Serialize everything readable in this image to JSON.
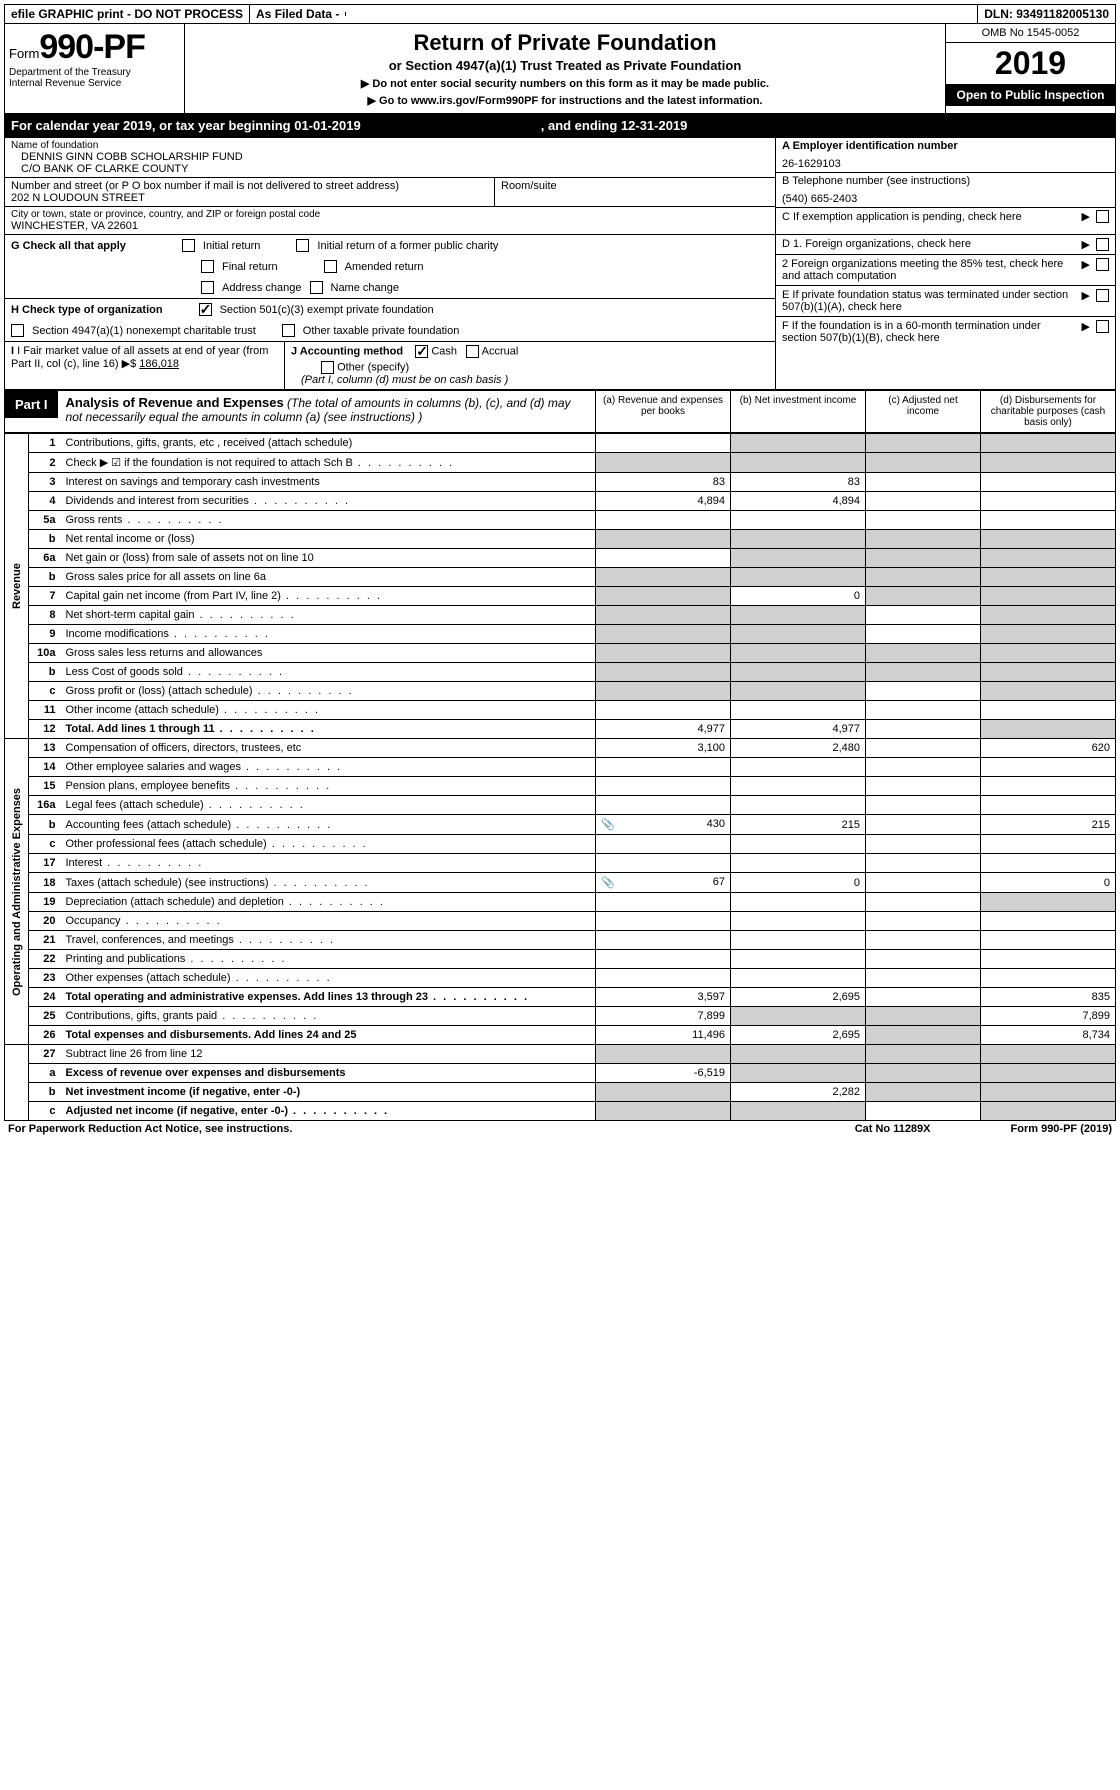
{
  "top": {
    "efile": "efile GRAPHIC print - DO NOT PROCESS",
    "asfiled": "As Filed Data -",
    "dln": "DLN: 93491182005130"
  },
  "header": {
    "form_prefix": "Form",
    "form_num": "990-PF",
    "dept": "Department of the Treasury",
    "irs": "Internal Revenue Service",
    "title": "Return of Private Foundation",
    "subtitle": "or Section 4947(a)(1) Trust Treated as Private Foundation",
    "instr1": "▶ Do not enter social security numbers on this form as it may be made public.",
    "instr2_pre": "▶ Go to ",
    "instr2_link": "www.irs.gov/Form990PF",
    "instr2_post": " for instructions and the latest information.",
    "omb": "OMB No 1545-0052",
    "year": "2019",
    "open": "Open to Public Inspection"
  },
  "calyear": {
    "text": "For calendar year 2019, or tax year beginning 01-01-2019",
    "ending": ", and ending 12-31-2019"
  },
  "entity": {
    "name_label": "Name of foundation",
    "name1": "DENNIS GINN COBB SCHOLARSHIP FUND",
    "name2": "C/O BANK OF CLARKE COUNTY",
    "addr_label": "Number and street (or P O  box number if mail is not delivered to street address)",
    "addr": "202 N LOUDOUN STREET",
    "room_label": "Room/suite",
    "city_label": "City or town, state or province, country, and ZIP or foreign postal code",
    "city": "WINCHESTER, VA  22601",
    "a_label": "A Employer identification number",
    "ein": "26-1629103",
    "b_label": "B Telephone number (see instructions)",
    "phone": "(540) 665-2403",
    "c_label": "C If exemption application is pending, check here"
  },
  "checks": {
    "g_label": "G Check all that apply",
    "g_opts": [
      "Initial return",
      "Initial return of a former public charity",
      "Final return",
      "Amended return",
      "Address change",
      "Name change"
    ],
    "h_label": "H Check type of organization",
    "h1": "Section 501(c)(3) exempt private foundation",
    "h2": "Section 4947(a)(1) nonexempt charitable trust",
    "h3": "Other taxable private foundation",
    "i_label": "I Fair market value of all assets at end of year (from Part II, col  (c), line 16) ▶$ ",
    "i_val": "186,018",
    "j_label": "J Accounting method",
    "j_cash": "Cash",
    "j_accrual": "Accrual",
    "j_other": "Other (specify)",
    "j_note": "(Part I, column (d) must be on cash basis )",
    "d1": "D 1. Foreign organizations, check here",
    "d2": "2 Foreign organizations meeting the 85% test, check here and attach computation",
    "e": "E  If private foundation status was terminated under section 507(b)(1)(A), check here",
    "f": "F  If the foundation is in a 60-month termination under section 507(b)(1)(B), check here"
  },
  "part1": {
    "label": "Part I",
    "title": "Analysis of Revenue and Expenses",
    "note": " (The total of amounts in columns (b), (c), and (d) may not necessarily equal the amounts in column (a) (see instructions) )",
    "col_a": "(a) Revenue and expenses per books",
    "col_b": "(b) Net investment income",
    "col_c": "(c) Adjusted net income",
    "col_d": "(d) Disbursements for charitable purposes (cash basis only)"
  },
  "rev_label": "Revenue",
  "exp_label": "Operating and Administrative Expenses",
  "rows": [
    {
      "n": "1",
      "d": "Contributions, gifts, grants, etc , received (attach schedule)",
      "a": "",
      "b": "",
      "c": "",
      "dd": "",
      "db": true,
      "dc": true,
      "ddc": true
    },
    {
      "n": "2",
      "d": "Check ▶ ☑ if the foundation is not required to attach Sch  B",
      "a": "",
      "b": "",
      "c": "",
      "dd": "",
      "da": true,
      "db": true,
      "dc": true,
      "ddc": true,
      "dots": true
    },
    {
      "n": "3",
      "d": "Interest on savings and temporary cash investments",
      "a": "83",
      "b": "83",
      "c": "",
      "dd": ""
    },
    {
      "n": "4",
      "d": "Dividends and interest from securities",
      "a": "4,894",
      "b": "4,894",
      "c": "",
      "dd": "",
      "dots": true
    },
    {
      "n": "5a",
      "d": "Gross rents",
      "a": "",
      "b": "",
      "c": "",
      "dd": "",
      "dots": true
    },
    {
      "n": "b",
      "d": "Net rental income or (loss)",
      "a": "",
      "b": "",
      "c": "",
      "dd": "",
      "da": true,
      "db": true,
      "dc": true,
      "ddc": true
    },
    {
      "n": "6a",
      "d": "Net gain or (loss) from sale of assets not on line 10",
      "a": "",
      "b": "",
      "c": "",
      "dd": "",
      "db": true,
      "dc": true,
      "ddc": true
    },
    {
      "n": "b",
      "d": "Gross sales price for all assets on line 6a",
      "a": "",
      "b": "",
      "c": "",
      "dd": "",
      "da": true,
      "db": true,
      "dc": true,
      "ddc": true
    },
    {
      "n": "7",
      "d": "Capital gain net income (from Part IV, line 2)",
      "a": "",
      "b": "0",
      "c": "",
      "dd": "",
      "da": true,
      "dc": true,
      "ddc": true,
      "dots": true
    },
    {
      "n": "8",
      "d": "Net short-term capital gain",
      "a": "",
      "b": "",
      "c": "",
      "dd": "",
      "da": true,
      "db": true,
      "ddc": true,
      "dots": true
    },
    {
      "n": "9",
      "d": "Income modifications",
      "a": "",
      "b": "",
      "c": "",
      "dd": "",
      "da": true,
      "db": true,
      "ddc": true,
      "dots": true
    },
    {
      "n": "10a",
      "d": "Gross sales less returns and allowances",
      "a": "",
      "b": "",
      "c": "",
      "dd": "",
      "da": true,
      "db": true,
      "dc": true,
      "ddc": true
    },
    {
      "n": "b",
      "d": "Less  Cost of goods sold",
      "a": "",
      "b": "",
      "c": "",
      "dd": "",
      "da": true,
      "db": true,
      "dc": true,
      "ddc": true,
      "dots": true
    },
    {
      "n": "c",
      "d": "Gross profit or (loss) (attach schedule)",
      "a": "",
      "b": "",
      "c": "",
      "dd": "",
      "da": true,
      "db": true,
      "ddc": true,
      "dots": true
    },
    {
      "n": "11",
      "d": "Other income (attach schedule)",
      "a": "",
      "b": "",
      "c": "",
      "dd": "",
      "dots": true
    },
    {
      "n": "12",
      "d": "Total. Add lines 1 through 11",
      "a": "4,977",
      "b": "4,977",
      "c": "",
      "dd": "",
      "bold": true,
      "ddc": true,
      "dots": true
    }
  ],
  "exp_rows": [
    {
      "n": "13",
      "d": "Compensation of officers, directors, trustees, etc",
      "a": "3,100",
      "b": "2,480",
      "c": "",
      "dd": "620"
    },
    {
      "n": "14",
      "d": "Other employee salaries and wages",
      "a": "",
      "b": "",
      "c": "",
      "dd": "",
      "dots": true
    },
    {
      "n": "15",
      "d": "Pension plans, employee benefits",
      "a": "",
      "b": "",
      "c": "",
      "dd": "",
      "dots": true
    },
    {
      "n": "16a",
      "d": "Legal fees (attach schedule)",
      "a": "",
      "b": "",
      "c": "",
      "dd": "",
      "dots": true
    },
    {
      "n": "b",
      "d": "Accounting fees (attach schedule)",
      "a": "430",
      "b": "215",
      "c": "",
      "dd": "215",
      "icon": true,
      "dots": true
    },
    {
      "n": "c",
      "d": "Other professional fees (attach schedule)",
      "a": "",
      "b": "",
      "c": "",
      "dd": "",
      "dots": true
    },
    {
      "n": "17",
      "d": "Interest",
      "a": "",
      "b": "",
      "c": "",
      "dd": "",
      "dots": true
    },
    {
      "n": "18",
      "d": "Taxes (attach schedule) (see instructions)",
      "a": "67",
      "b": "0",
      "c": "",
      "dd": "0",
      "icon": true,
      "dots": true
    },
    {
      "n": "19",
      "d": "Depreciation (attach schedule) and depletion",
      "a": "",
      "b": "",
      "c": "",
      "dd": "",
      "ddc": true,
      "dots": true
    },
    {
      "n": "20",
      "d": "Occupancy",
      "a": "",
      "b": "",
      "c": "",
      "dd": "",
      "dots": true
    },
    {
      "n": "21",
      "d": "Travel, conferences, and meetings",
      "a": "",
      "b": "",
      "c": "",
      "dd": "",
      "dots": true
    },
    {
      "n": "22",
      "d": "Printing and publications",
      "a": "",
      "b": "",
      "c": "",
      "dd": "",
      "dots": true
    },
    {
      "n": "23",
      "d": "Other expenses (attach schedule)",
      "a": "",
      "b": "",
      "c": "",
      "dd": "",
      "dots": true
    },
    {
      "n": "24",
      "d": "Total operating and administrative expenses. Add lines 13 through 23",
      "a": "3,597",
      "b": "2,695",
      "c": "",
      "dd": "835",
      "bold": true,
      "dots": true
    },
    {
      "n": "25",
      "d": "Contributions, gifts, grants paid",
      "a": "7,899",
      "b": "",
      "c": "",
      "dd": "7,899",
      "db": true,
      "dc": true,
      "dots": true
    },
    {
      "n": "26",
      "d": "Total expenses and disbursements. Add lines 24 and 25",
      "a": "11,496",
      "b": "2,695",
      "c": "",
      "dd": "8,734",
      "bold": true,
      "dc": true
    }
  ],
  "net_rows": [
    {
      "n": "27",
      "d": "Subtract line 26 from line 12",
      "a": "",
      "b": "",
      "c": "",
      "dd": "",
      "da": true,
      "db": true,
      "dc": true,
      "ddc": true
    },
    {
      "n": "a",
      "d": "Excess of revenue over expenses and disbursements",
      "a": "-6,519",
      "b": "",
      "c": "",
      "dd": "",
      "bold": true,
      "db": true,
      "dc": true,
      "ddc": true
    },
    {
      "n": "b",
      "d": "Net investment income (if negative, enter -0-)",
      "a": "",
      "b": "2,282",
      "c": "",
      "dd": "",
      "bold": true,
      "da": true,
      "dc": true,
      "ddc": true
    },
    {
      "n": "c",
      "d": "Adjusted net income (if negative, enter -0-)",
      "a": "",
      "b": "",
      "c": "",
      "dd": "",
      "bold": true,
      "da": true,
      "db": true,
      "ddc": true,
      "dots": true
    }
  ],
  "footer": {
    "left": "For Paperwork Reduction Act Notice, see instructions.",
    "mid": "Cat  No  11289X",
    "right": "Form 990-PF (2019)"
  }
}
